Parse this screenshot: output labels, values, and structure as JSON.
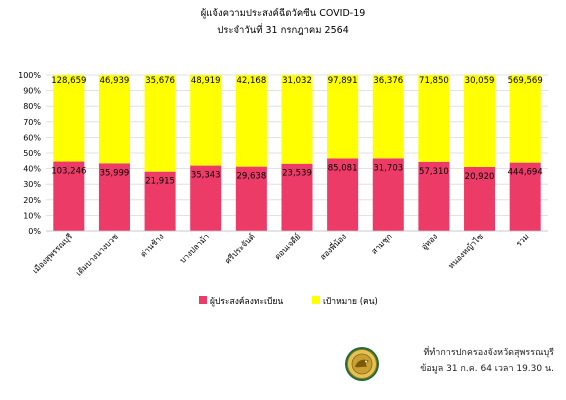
{
  "chart_data": {
    "type": "bar",
    "stacked": "percent",
    "title": "ผู้แจ้งความประสงค์ฉีดวัคซีน COVID-19",
    "subtitle": "ประจำวันที่ 31 กรกฎาคม 2564",
    "categories": [
      "เมืองสุพรรณบุรี",
      "เดิมบางนางบวช",
      "ด่านช้าง",
      "บางปลาม้า",
      "ศรีประจันต์",
      "ดอนเจดีย์",
      "สองพี่น้อง",
      "สามชุก",
      "อู่ทอง",
      "หนองหญ้าไซ",
      "รวม"
    ],
    "series": [
      {
        "name": "ผู้ประสงค์ลงทะเบียน",
        "color": "#ed3b68",
        "values": [
          103246,
          35999,
          21915,
          35343,
          29638,
          23539,
          85081,
          31703,
          57310,
          20920,
          444694
        ],
        "labels": [
          "103,246",
          "35,999",
          "21,915",
          "35,343",
          "29,638",
          "23,539",
          "85,081",
          "31,703",
          "57,310",
          "20,920",
          "444,694"
        ]
      },
      {
        "name": "เป้าหมาย (คน)",
        "color": "#ffff00",
        "values": [
          128659,
          46939,
          35676,
          48919,
          42168,
          31032,
          97891,
          36376,
          71850,
          30059,
          569569
        ],
        "labels": [
          "128,659",
          "46,939",
          "35,676",
          "48,919",
          "42,168",
          "31,032",
          "97,891",
          "36,376",
          "71,850",
          "30,059",
          "569,569"
        ]
      }
    ],
    "yticks": [
      "0%",
      "10%",
      "20%",
      "30%",
      "40%",
      "50%",
      "60%",
      "70%",
      "80%",
      "90%",
      "100%"
    ],
    "ylim": [
      0,
      100
    ],
    "grid": true,
    "legend": "bottom"
  },
  "footer": {
    "line1": "ที่ทำการปกครองจังหวัดสุพรรณบุรี",
    "line2": "ข้อมูล 31 ก.ค. 64 เวลา 19.30 น.",
    "seal_icon": "provincial-seal-icon",
    "seal_color": "#c9a227"
  }
}
